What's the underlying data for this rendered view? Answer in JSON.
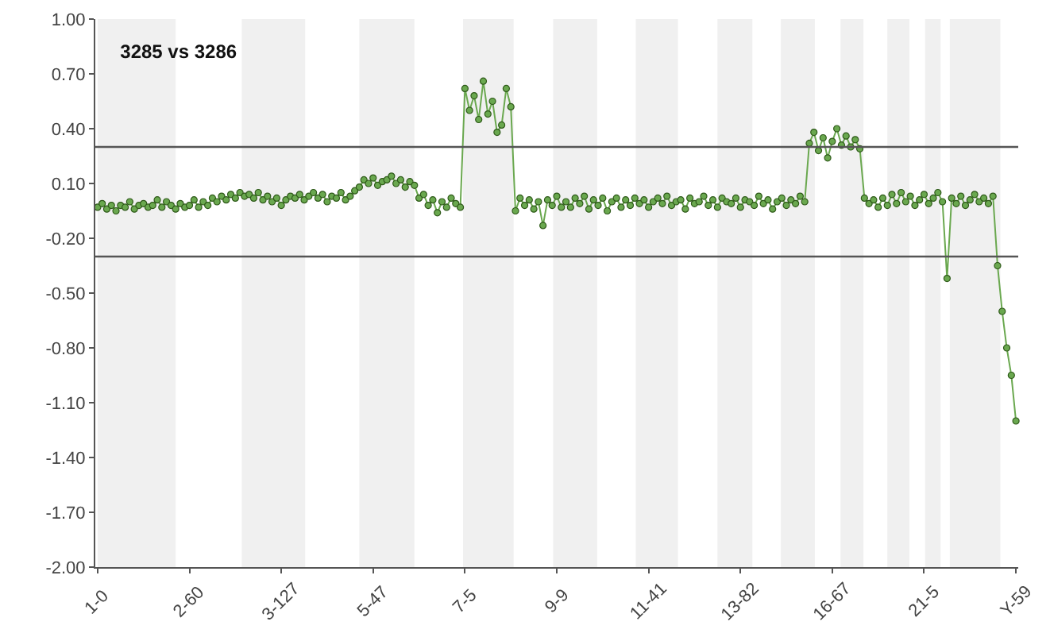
{
  "chart_data": {
    "type": "line",
    "title": "3285 vs 3286",
    "marker": "circle",
    "line_style": "solid",
    "grid": false,
    "categories": [
      "1-0",
      null,
      null,
      null,
      null,
      null,
      null,
      null,
      null,
      null,
      null,
      null,
      null,
      null,
      null,
      null,
      null,
      null,
      null,
      null,
      "2-60",
      null,
      null,
      null,
      null,
      null,
      null,
      null,
      null,
      null,
      null,
      null,
      null,
      null,
      null,
      null,
      null,
      null,
      null,
      null,
      "3-127",
      null,
      null,
      null,
      null,
      null,
      null,
      null,
      null,
      null,
      null,
      null,
      null,
      null,
      null,
      null,
      null,
      null,
      null,
      null,
      "5-47",
      null,
      null,
      null,
      null,
      null,
      null,
      null,
      null,
      null,
      null,
      null,
      null,
      null,
      null,
      null,
      null,
      null,
      null,
      null,
      "7-5",
      null,
      null,
      null,
      null,
      null,
      null,
      null,
      null,
      null,
      null,
      null,
      null,
      null,
      null,
      null,
      null,
      null,
      null,
      null,
      "9-9",
      null,
      null,
      null,
      null,
      null,
      null,
      null,
      null,
      null,
      null,
      null,
      null,
      null,
      null,
      null,
      null,
      null,
      null,
      null,
      "11-41",
      null,
      null,
      null,
      null,
      null,
      null,
      null,
      null,
      null,
      null,
      null,
      null,
      null,
      null,
      null,
      null,
      null,
      null,
      null,
      "13-82",
      null,
      null,
      null,
      null,
      null,
      null,
      null,
      null,
      null,
      null,
      null,
      null,
      null,
      null,
      null,
      null,
      null,
      null,
      null,
      "16-67",
      null,
      null,
      null,
      null,
      null,
      null,
      null,
      null,
      null,
      null,
      null,
      null,
      null,
      null,
      null,
      null,
      null,
      null,
      null,
      "21-5",
      null,
      null,
      null,
      null,
      null,
      null,
      null,
      null,
      null,
      null,
      null,
      null,
      null,
      null,
      null,
      null,
      null,
      null,
      null,
      "Y-59"
    ],
    "series": [
      {
        "color": "#6aa84f",
        "values": [
          -0.03,
          -0.01,
          -0.04,
          -0.02,
          -0.05,
          -0.02,
          -0.03,
          0.0,
          -0.04,
          -0.02,
          -0.01,
          -0.03,
          -0.02,
          0.01,
          -0.03,
          0.0,
          -0.02,
          -0.04,
          -0.01,
          -0.03,
          -0.02,
          0.01,
          -0.03,
          0.0,
          -0.02,
          0.02,
          0.0,
          0.03,
          0.01,
          0.04,
          0.02,
          0.05,
          0.03,
          0.04,
          0.02,
          0.05,
          0.01,
          0.03,
          0.0,
          0.02,
          -0.02,
          0.01,
          0.03,
          0.02,
          0.04,
          0.01,
          0.03,
          0.05,
          0.02,
          0.04,
          0.0,
          0.03,
          0.02,
          0.05,
          0.01,
          0.03,
          0.06,
          0.08,
          0.12,
          0.1,
          0.13,
          0.09,
          0.11,
          0.12,
          0.14,
          0.1,
          0.12,
          0.08,
          0.11,
          0.09,
          0.02,
          0.04,
          -0.02,
          0.01,
          -0.06,
          0.0,
          -0.03,
          0.02,
          -0.01,
          -0.03,
          0.62,
          0.5,
          0.58,
          0.45,
          0.66,
          0.48,
          0.55,
          0.38,
          0.42,
          0.62,
          0.52,
          -0.05,
          0.02,
          -0.02,
          0.01,
          -0.04,
          0.0,
          -0.13,
          0.01,
          -0.02,
          0.03,
          -0.03,
          0.0,
          -0.03,
          0.02,
          -0.01,
          0.03,
          -0.04,
          0.01,
          -0.02,
          0.02,
          -0.05,
          0.0,
          0.02,
          -0.03,
          0.01,
          -0.02,
          0.02,
          -0.01,
          0.01,
          -0.03,
          0.0,
          0.02,
          -0.01,
          0.03,
          -0.02,
          0.0,
          0.01,
          -0.04,
          0.02,
          -0.01,
          0.0,
          0.03,
          -0.02,
          0.01,
          -0.03,
          0.02,
          0.0,
          -0.01,
          0.02,
          -0.03,
          0.01,
          0.0,
          -0.02,
          0.03,
          -0.01,
          0.01,
          -0.04,
          0.0,
          0.02,
          -0.02,
          0.01,
          -0.01,
          0.03,
          0.0,
          0.32,
          0.38,
          0.28,
          0.35,
          0.24,
          0.33,
          0.4,
          0.31,
          0.36,
          0.3,
          0.34,
          0.29,
          0.02,
          -0.01,
          0.01,
          -0.03,
          0.02,
          -0.02,
          0.04,
          -0.01,
          0.05,
          0.0,
          0.03,
          -0.02,
          0.01,
          0.04,
          -0.01,
          0.02,
          0.05,
          0.0,
          -0.42,
          0.02,
          -0.01,
          0.03,
          -0.02,
          0.01,
          0.04,
          0.0,
          0.02,
          -0.01,
          0.03,
          -0.35,
          -0.6,
          -0.8,
          -0.95,
          -1.2
        ]
      }
    ],
    "ylim": [
      -2,
      1
    ],
    "yticks": [
      {
        "value": 1,
        "label": "1.00"
      },
      {
        "value": 0.7,
        "label": "0.70"
      },
      {
        "value": 0.4,
        "label": "0.40"
      },
      {
        "value": 0.1,
        "label": "0.10"
      },
      {
        "value": -0.2,
        "label": "-0.20"
      },
      {
        "value": -0.5,
        "label": "-0.50"
      },
      {
        "value": -0.8,
        "label": "-0.80"
      },
      {
        "value": -1.1,
        "label": "-1.10"
      },
      {
        "value": -1.4,
        "label": "-1.40"
      },
      {
        "value": -1.7,
        "label": "-1.70"
      },
      {
        "value": -2,
        "label": "-2.00"
      }
    ],
    "ref_lines": [
      {
        "axis": "y",
        "value": 0.3,
        "color": "#555555"
      },
      {
        "axis": "y",
        "value": -0.3,
        "color": "#555555"
      }
    ]
  }
}
